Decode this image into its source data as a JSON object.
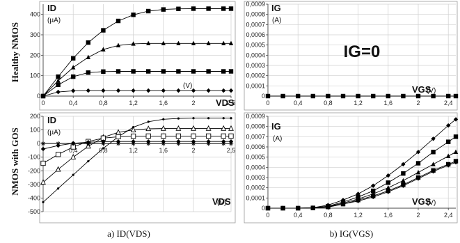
{
  "row_labels": [
    "Healthy NMOS",
    "NMOS with GOS"
  ],
  "captions": [
    "a) ID(VDS)",
    "b) IG(VGS)"
  ],
  "chart_data": [
    {
      "id": "healthy-id-vds",
      "type": "line",
      "ylabel": "ID",
      "ylabel_unit": "(µA)",
      "xlabel": "VDS",
      "xlabel_unit": "(V)",
      "annotation": "",
      "xlim": [
        0,
        2.5
      ],
      "ylim": [
        0,
        450
      ],
      "xticks": [
        "0",
        "0,4",
        "0,8",
        "1,2",
        "1,6",
        "2",
        "2,5"
      ],
      "yticks": [
        "0",
        "100",
        "200",
        "300",
        "400"
      ],
      "grid": true,
      "series": [
        {
          "marker": "square",
          "points": [
            [
              0,
              0
            ],
            [
              0.2,
              95
            ],
            [
              0.4,
              185
            ],
            [
              0.6,
              262
            ],
            [
              0.8,
              322
            ],
            [
              1.0,
              368
            ],
            [
              1.2,
              398
            ],
            [
              1.4,
              416
            ],
            [
              1.6,
              424
            ],
            [
              1.8,
              427
            ],
            [
              2.0,
              428
            ],
            [
              2.2,
              428
            ],
            [
              2.4,
              428
            ],
            [
              2.5,
              428
            ]
          ]
        },
        {
          "marker": "triangle",
          "points": [
            [
              0,
              0
            ],
            [
              0.2,
              75
            ],
            [
              0.4,
              140
            ],
            [
              0.6,
              190
            ],
            [
              0.8,
              228
            ],
            [
              1.0,
              248
            ],
            [
              1.2,
              256
            ],
            [
              1.4,
              258
            ],
            [
              1.6,
              258
            ],
            [
              1.8,
              258
            ],
            [
              2.0,
              258
            ],
            [
              2.2,
              258
            ],
            [
              2.4,
              258
            ],
            [
              2.5,
              258
            ]
          ]
        },
        {
          "marker": "square",
          "points": [
            [
              0,
              0
            ],
            [
              0.2,
              55
            ],
            [
              0.4,
              95
            ],
            [
              0.6,
              115
            ],
            [
              0.8,
              120
            ],
            [
              1.0,
              121
            ],
            [
              1.2,
              121
            ],
            [
              1.4,
              121
            ],
            [
              1.6,
              121
            ],
            [
              1.8,
              121
            ],
            [
              2.0,
              121
            ],
            [
              2.2,
              121
            ],
            [
              2.4,
              121
            ],
            [
              2.5,
              121
            ]
          ]
        },
        {
          "marker": "diamond",
          "points": [
            [
              0,
              0
            ],
            [
              0.2,
              20
            ],
            [
              0.4,
              26
            ],
            [
              0.6,
              27
            ],
            [
              0.8,
              27
            ],
            [
              1.0,
              27
            ],
            [
              1.2,
              27
            ],
            [
              1.4,
              27
            ],
            [
              1.6,
              27
            ],
            [
              1.8,
              27
            ],
            [
              2.0,
              27
            ],
            [
              2.2,
              27
            ],
            [
              2.4,
              27
            ],
            [
              2.5,
              27
            ]
          ]
        }
      ]
    },
    {
      "id": "healthy-ig-vgs",
      "type": "line",
      "ylabel": "IG",
      "ylabel_unit": "(A)",
      "xlabel": "VGS",
      "xlabel_unit": "(V)",
      "annotation": "IG=0",
      "xlim": [
        0,
        2.5
      ],
      "ylim": [
        0,
        0.0009
      ],
      "xticks": [
        "0",
        "0,4",
        "0,8",
        "1,2",
        "1,6",
        "2",
        "2,4"
      ],
      "yticks": [
        "0",
        "0,0001",
        "0,0002",
        "0,0003",
        "0,0004",
        "0,0005",
        "0,0006",
        "0,0007",
        "0,0008",
        "0,0009"
      ],
      "grid": true,
      "series": [
        {
          "marker": "square",
          "points": [
            [
              0,
              0
            ],
            [
              0.2,
              0
            ],
            [
              0.4,
              0
            ],
            [
              0.6,
              0
            ],
            [
              0.8,
              0
            ],
            [
              1.0,
              0
            ],
            [
              1.2,
              0
            ],
            [
              1.4,
              0
            ],
            [
              1.6,
              0
            ],
            [
              1.8,
              0
            ],
            [
              2.0,
              0
            ],
            [
              2.2,
              0
            ],
            [
              2.4,
              0
            ],
            [
              2.5,
              0
            ]
          ]
        }
      ]
    },
    {
      "id": "gos-id-vds",
      "type": "line",
      "ylabel": "ID",
      "ylabel_unit": "(µA)",
      "xlabel": "VDS",
      "xlabel_unit": "(V)",
      "annotation": "",
      "xlim": [
        0,
        2.5
      ],
      "ylim": [
        -500,
        200
      ],
      "xticks": [
        "0,4",
        "0,8",
        "1,2",
        "1,6",
        "2",
        "2,5"
      ],
      "yticks": [
        "-500",
        "-400",
        "-300",
        "-200",
        "-100",
        "0",
        "100",
        "200"
      ],
      "grid": true,
      "series": [
        {
          "marker": "dot",
          "points": [
            [
              0,
              -430
            ],
            [
              0.2,
              -330
            ],
            [
              0.4,
              -230
            ],
            [
              0.6,
              -130
            ],
            [
              0.8,
              -35
            ],
            [
              1.0,
              50
            ],
            [
              1.2,
              120
            ],
            [
              1.4,
              160
            ],
            [
              1.6,
              178
            ],
            [
              1.8,
              184
            ],
            [
              2.0,
              186
            ],
            [
              2.2,
              186
            ],
            [
              2.4,
              186
            ],
            [
              2.5,
              186
            ]
          ]
        },
        {
          "marker": "triangle-open",
          "points": [
            [
              0,
              -285
            ],
            [
              0.2,
              -190
            ],
            [
              0.4,
              -100
            ],
            [
              0.6,
              -20
            ],
            [
              0.8,
              45
            ],
            [
              1.0,
              82
            ],
            [
              1.2,
              100
            ],
            [
              1.4,
              108
            ],
            [
              1.6,
              110
            ],
            [
              1.8,
              110
            ],
            [
              2.0,
              110
            ],
            [
              2.2,
              110
            ],
            [
              2.4,
              110
            ],
            [
              2.5,
              110
            ]
          ]
        },
        {
          "marker": "square-open",
          "points": [
            [
              0,
              -145
            ],
            [
              0.2,
              -80
            ],
            [
              0.4,
              -25
            ],
            [
              0.6,
              15
            ],
            [
              0.8,
              40
            ],
            [
              1.0,
              50
            ],
            [
              1.2,
              54
            ],
            [
              1.4,
              55
            ],
            [
              1.6,
              55
            ],
            [
              1.8,
              55
            ],
            [
              2.0,
              55
            ],
            [
              2.2,
              55
            ],
            [
              2.4,
              55
            ],
            [
              2.5,
              55
            ]
          ]
        },
        {
          "marker": "diamond",
          "points": [
            [
              0,
              -40
            ],
            [
              0.2,
              -15
            ],
            [
              0.4,
              2
            ],
            [
              0.6,
              10
            ],
            [
              0.8,
              14
            ],
            [
              1.0,
              15
            ],
            [
              1.2,
              15
            ],
            [
              1.4,
              15
            ],
            [
              1.6,
              15
            ],
            [
              1.8,
              15
            ],
            [
              2.0,
              15
            ],
            [
              2.2,
              15
            ],
            [
              2.4,
              15
            ],
            [
              2.5,
              15
            ]
          ]
        },
        {
          "marker": "star",
          "points": [
            [
              0,
              0
            ],
            [
              0.2,
              0
            ],
            [
              0.4,
              0
            ],
            [
              0.6,
              0
            ],
            [
              0.8,
              0
            ],
            [
              1.0,
              0
            ],
            [
              1.2,
              0
            ],
            [
              1.4,
              0
            ],
            [
              1.6,
              0
            ],
            [
              1.8,
              0
            ],
            [
              2.0,
              0
            ],
            [
              2.2,
              0
            ],
            [
              2.4,
              0
            ],
            [
              2.5,
              0
            ]
          ]
        }
      ]
    },
    {
      "id": "gos-ig-vgs",
      "type": "line",
      "ylabel": "IG",
      "ylabel_unit": "(A)",
      "xlabel": "VGS",
      "xlabel_unit": "(V)",
      "annotation": "",
      "xlim": [
        0,
        2.5
      ],
      "ylim": [
        0,
        0.0009
      ],
      "xticks": [
        "0",
        "0,4",
        "0,8",
        "1,2",
        "1,6",
        "2",
        "2,4"
      ],
      "yticks": [
        "0",
        "0,0001",
        "0,0002",
        "0,0003",
        "0,0004",
        "0,0005",
        "0,0006",
        "0,0007",
        "0,0008",
        "0,0009"
      ],
      "grid": true,
      "series": [
        {
          "marker": "diamond",
          "points": [
            [
              0,
              0
            ],
            [
              0.2,
              0
            ],
            [
              0.4,
              0
            ],
            [
              0.6,
              5e-06
            ],
            [
              0.8,
              3e-05
            ],
            [
              1.0,
              8e-05
            ],
            [
              1.2,
              0.00014
            ],
            [
              1.4,
              0.00022
            ],
            [
              1.6,
              0.00032
            ],
            [
              1.8,
              0.00043
            ],
            [
              2.0,
              0.00055
            ],
            [
              2.2,
              0.00068
            ],
            [
              2.4,
              0.00081
            ],
            [
              2.5,
              0.00087
            ]
          ]
        },
        {
          "marker": "square",
          "points": [
            [
              0,
              0
            ],
            [
              0.2,
              0
            ],
            [
              0.4,
              0
            ],
            [
              0.6,
              3e-06
            ],
            [
              0.8,
              2e-05
            ],
            [
              1.0,
              6e-05
            ],
            [
              1.2,
              0.00011
            ],
            [
              1.4,
              0.00017
            ],
            [
              1.6,
              0.00025
            ],
            [
              1.8,
              0.00034
            ],
            [
              2.0,
              0.00044
            ],
            [
              2.2,
              0.00055
            ],
            [
              2.4,
              0.00065
            ],
            [
              2.5,
              0.0007
            ]
          ]
        },
        {
          "marker": "triangle",
          "points": [
            [
              0,
              0
            ],
            [
              0.2,
              0
            ],
            [
              0.4,
              0
            ],
            [
              0.6,
              2e-06
            ],
            [
              0.8,
              1.5e-05
            ],
            [
              1.0,
              5e-05
            ],
            [
              1.2,
              9e-05
            ],
            [
              1.4,
              0.00014
            ],
            [
              1.6,
              0.0002
            ],
            [
              1.8,
              0.00027
            ],
            [
              2.0,
              0.00035
            ],
            [
              2.2,
              0.00043
            ],
            [
              2.4,
              0.00051
            ],
            [
              2.5,
              0.00055
            ]
          ]
        },
        {
          "marker": "square",
          "points": [
            [
              0,
              0
            ],
            [
              0.2,
              0
            ],
            [
              0.4,
              0
            ],
            [
              0.6,
              2e-06
            ],
            [
              0.8,
              1.2e-05
            ],
            [
              1.0,
              4e-05
            ],
            [
              1.2,
              8e-05
            ],
            [
              1.4,
              0.00012
            ],
            [
              1.6,
              0.00017
            ],
            [
              1.8,
              0.00023
            ],
            [
              2.0,
              0.0003
            ],
            [
              2.2,
              0.00037
            ],
            [
              2.4,
              0.00043
            ],
            [
              2.5,
              0.00046
            ]
          ]
        },
        {
          "marker": "diamond",
          "points": [
            [
              0,
              0
            ],
            [
              0.2,
              0
            ],
            [
              0.4,
              0
            ],
            [
              0.6,
              2e-06
            ],
            [
              0.8,
              1e-05
            ],
            [
              1.0,
              4e-05
            ],
            [
              1.2,
              7e-05
            ],
            [
              1.4,
              0.00011
            ],
            [
              1.6,
              0.00016
            ],
            [
              1.8,
              0.00022
            ],
            [
              2.0,
              0.00029
            ],
            [
              2.2,
              0.00036
            ],
            [
              2.4,
              0.00042
            ],
            [
              2.5,
              0.00045
            ]
          ]
        }
      ]
    }
  ]
}
